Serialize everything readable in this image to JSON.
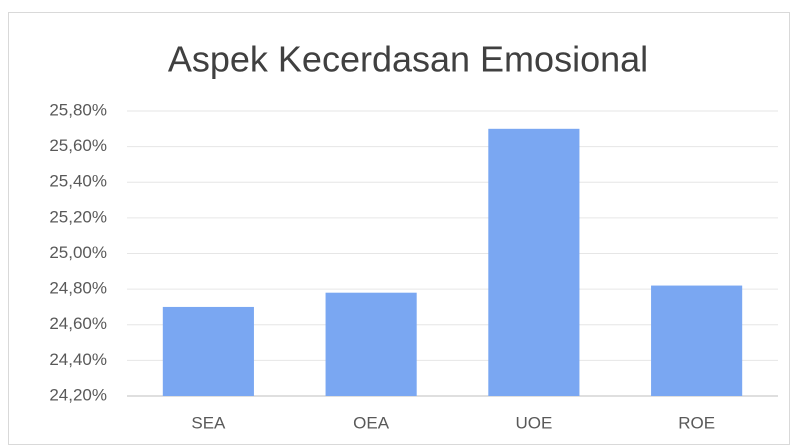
{
  "chart_data": {
    "type": "bar",
    "title": "Aspek Kecerdasan Emosional",
    "categories": [
      "SEA",
      "OEA",
      "UOE",
      "ROE"
    ],
    "values": [
      24.7,
      24.78,
      25.7,
      24.82
    ],
    "color": "#7aa7f2",
    "ylim": [
      24.2,
      25.8
    ],
    "yticks": [
      {
        "value": 24.2,
        "label": "24,20%"
      },
      {
        "value": 24.4,
        "label": "24,40%"
      },
      {
        "value": 24.6,
        "label": "24,60%"
      },
      {
        "value": 24.8,
        "label": "24,80%"
      },
      {
        "value": 25.0,
        "label": "25,00%"
      },
      {
        "value": 25.2,
        "label": "25,20%"
      },
      {
        "value": 25.4,
        "label": "25,40%"
      },
      {
        "value": 25.6,
        "label": "25,60%"
      },
      {
        "value": 25.8,
        "label": "25,80%"
      }
    ],
    "grid": true
  }
}
